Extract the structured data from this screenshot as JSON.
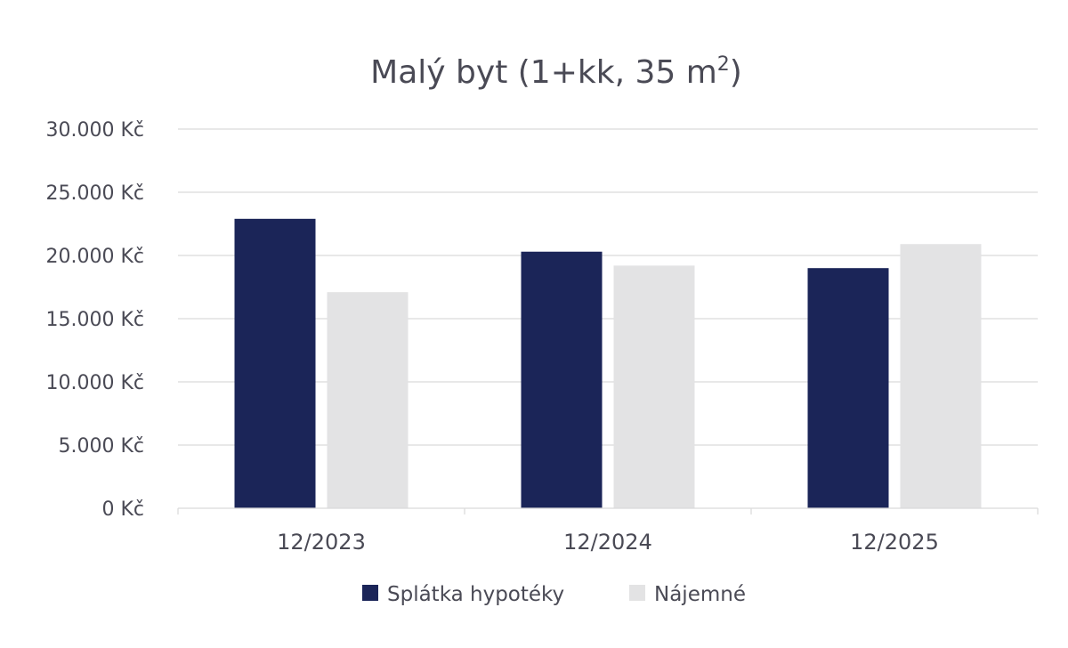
{
  "chart_data": {
    "type": "bar",
    "title": "Malý byt (1+kk, 35 m",
    "title_superscript": "2",
    "title_suffix": ")",
    "categories": [
      "12/2023",
      "12/2024",
      "12/2025"
    ],
    "series": [
      {
        "name": "Splátka hypotéky",
        "values": [
          22900,
          20300,
          19000
        ],
        "color": "#1b2558"
      },
      {
        "name": "Nájemné",
        "values": [
          17100,
          19200,
          20900
        ],
        "color": "#e3e3e4"
      }
    ],
    "ylim": [
      0,
      30000
    ],
    "yticks": [
      0,
      5000,
      10000,
      15000,
      20000,
      25000,
      30000
    ],
    "ytick_labels": [
      "0 Kč",
      "5.000 Kč",
      "10.000 Kč",
      "15.000 Kč",
      "20.000 Kč",
      "25.000 Kč",
      "30.000 Kč"
    ],
    "grid": true,
    "legend_position": "bottom"
  }
}
